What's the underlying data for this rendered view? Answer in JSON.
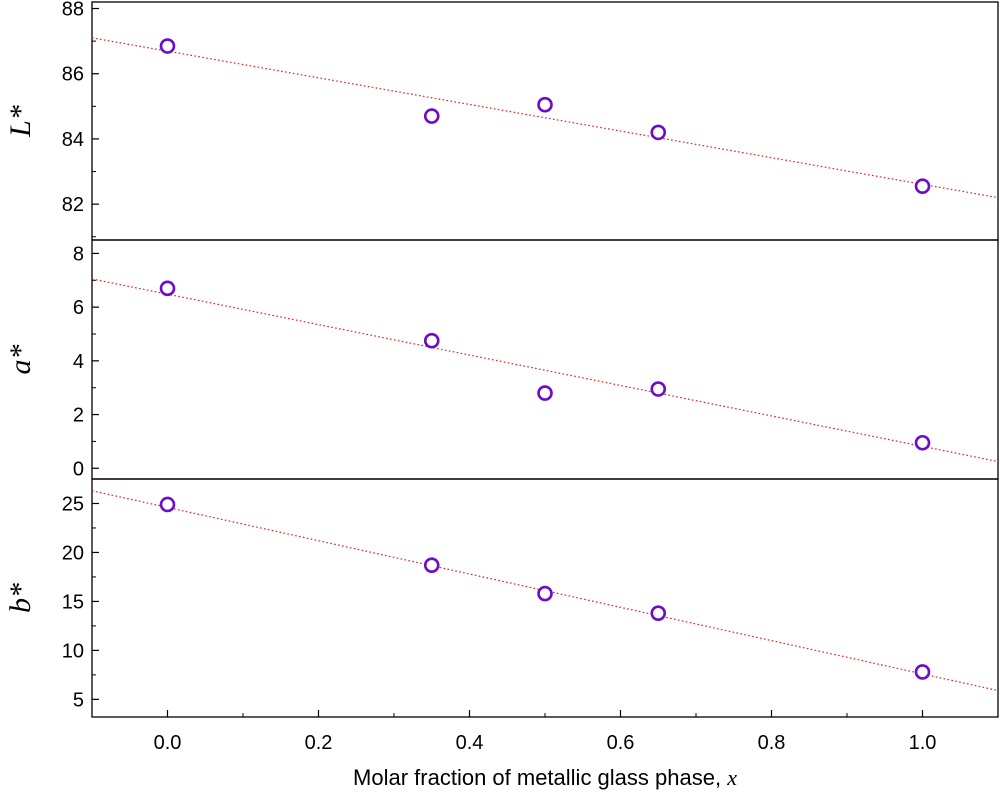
{
  "chart_data": {
    "type": "scatter",
    "shared_x": {
      "label": "Molar fraction of metallic glass phase, ",
      "label_var": "x",
      "lim": [
        -0.1,
        1.1
      ],
      "ticks": [
        0.0,
        0.2,
        0.4,
        0.6,
        0.8,
        1.0
      ],
      "tick_labels": [
        "0.0",
        "0.2",
        "0.4",
        "0.6",
        "0.8",
        "1.0"
      ]
    },
    "marker_color": "#6a0dcc",
    "fit_color": "#e02020",
    "panels": [
      {
        "ylabel": "L*",
        "ylim": [
          80.9,
          88.2
        ],
        "yticks": [
          82,
          84,
          86,
          88
        ],
        "ytick_labels": [
          "82",
          "84",
          "86",
          "88"
        ],
        "x": [
          0.0,
          0.35,
          0.5,
          0.65,
          1.0
        ],
        "y": [
          86.85,
          84.7,
          85.05,
          84.2,
          82.55
        ],
        "fit": {
          "x": [
            -0.1,
            1.1
          ],
          "y": [
            87.1,
            82.2
          ]
        }
      },
      {
        "ylabel": "a*",
        "ylim": [
          -0.4,
          8.5
        ],
        "yticks": [
          0,
          2,
          4,
          6,
          8
        ],
        "ytick_labels": [
          "0",
          "2",
          "4",
          "6",
          "8"
        ],
        "x": [
          0.0,
          0.35,
          0.5,
          0.65,
          1.0
        ],
        "y": [
          6.7,
          4.75,
          2.8,
          2.95,
          0.95
        ],
        "fit": {
          "x": [
            -0.1,
            1.1
          ],
          "y": [
            7.05,
            0.25
          ]
        }
      },
      {
        "ylabel": "b*",
        "ylim": [
          3.2,
          27.5
        ],
        "yticks": [
          5,
          10,
          15,
          20,
          25
        ],
        "ytick_labels": [
          "5",
          "10",
          "15",
          "20",
          "25"
        ],
        "x": [
          0.0,
          0.35,
          0.5,
          0.65,
          1.0
        ],
        "y": [
          24.9,
          18.7,
          15.8,
          13.8,
          7.8
        ],
        "fit": {
          "x": [
            -0.1,
            1.1
          ],
          "y": [
            26.3,
            5.9
          ]
        }
      }
    ]
  }
}
